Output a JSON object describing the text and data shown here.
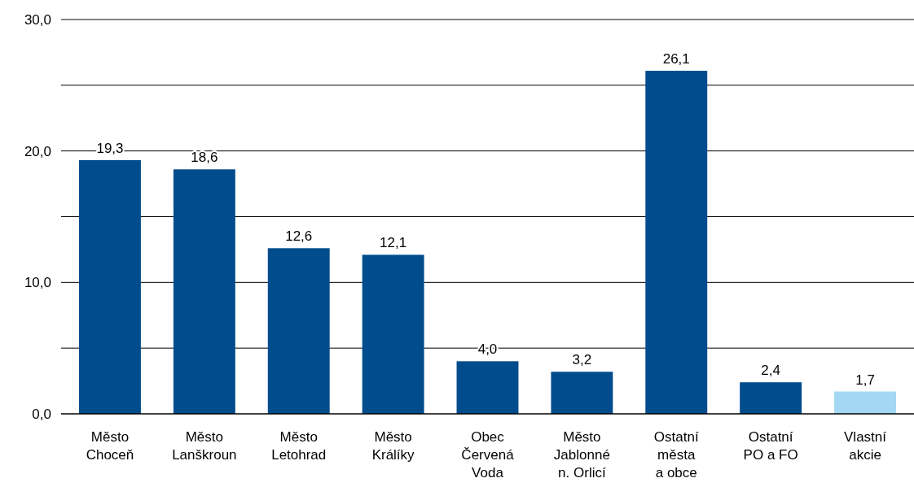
{
  "chart_data": {
    "type": "bar",
    "categories": [
      "Město\nChoceň",
      "Město\nLanškroun",
      "Město\nLetohrad",
      "Město\nKrálíky",
      "Obec\nČervená\nVoda",
      "Město\nJablonné\nn. Orlicí",
      "Ostatní\nměsta\na obce",
      "Ostatní\nPO a FO",
      "Vlastní\nakcie"
    ],
    "values": [
      19.3,
      18.6,
      12.6,
      12.1,
      4.0,
      3.2,
      26.1,
      2.4,
      1.7
    ],
    "colors": [
      "#004c8c",
      "#004c8c",
      "#004c8c",
      "#004c8c",
      "#004c8c",
      "#004c8c",
      "#004c8c",
      "#004c8c",
      "#a3d8f4"
    ],
    "value_labels": [
      "19,3",
      "18,6",
      "12,6",
      "12,1",
      "4,0",
      "3,2",
      "26,1",
      "2,4",
      "1,7"
    ],
    "ylim": [
      0,
      30
    ],
    "yticks": [
      {
        "value": 0,
        "label": "0,0"
      },
      {
        "value": 5,
        "label": null
      },
      {
        "value": 10,
        "label": "10,0"
      },
      {
        "value": 15,
        "label": null
      },
      {
        "value": 20,
        "label": "20,0"
      },
      {
        "value": 25,
        "label": null
      },
      {
        "value": 30,
        "label": "30,0"
      }
    ],
    "grid": "y"
  }
}
